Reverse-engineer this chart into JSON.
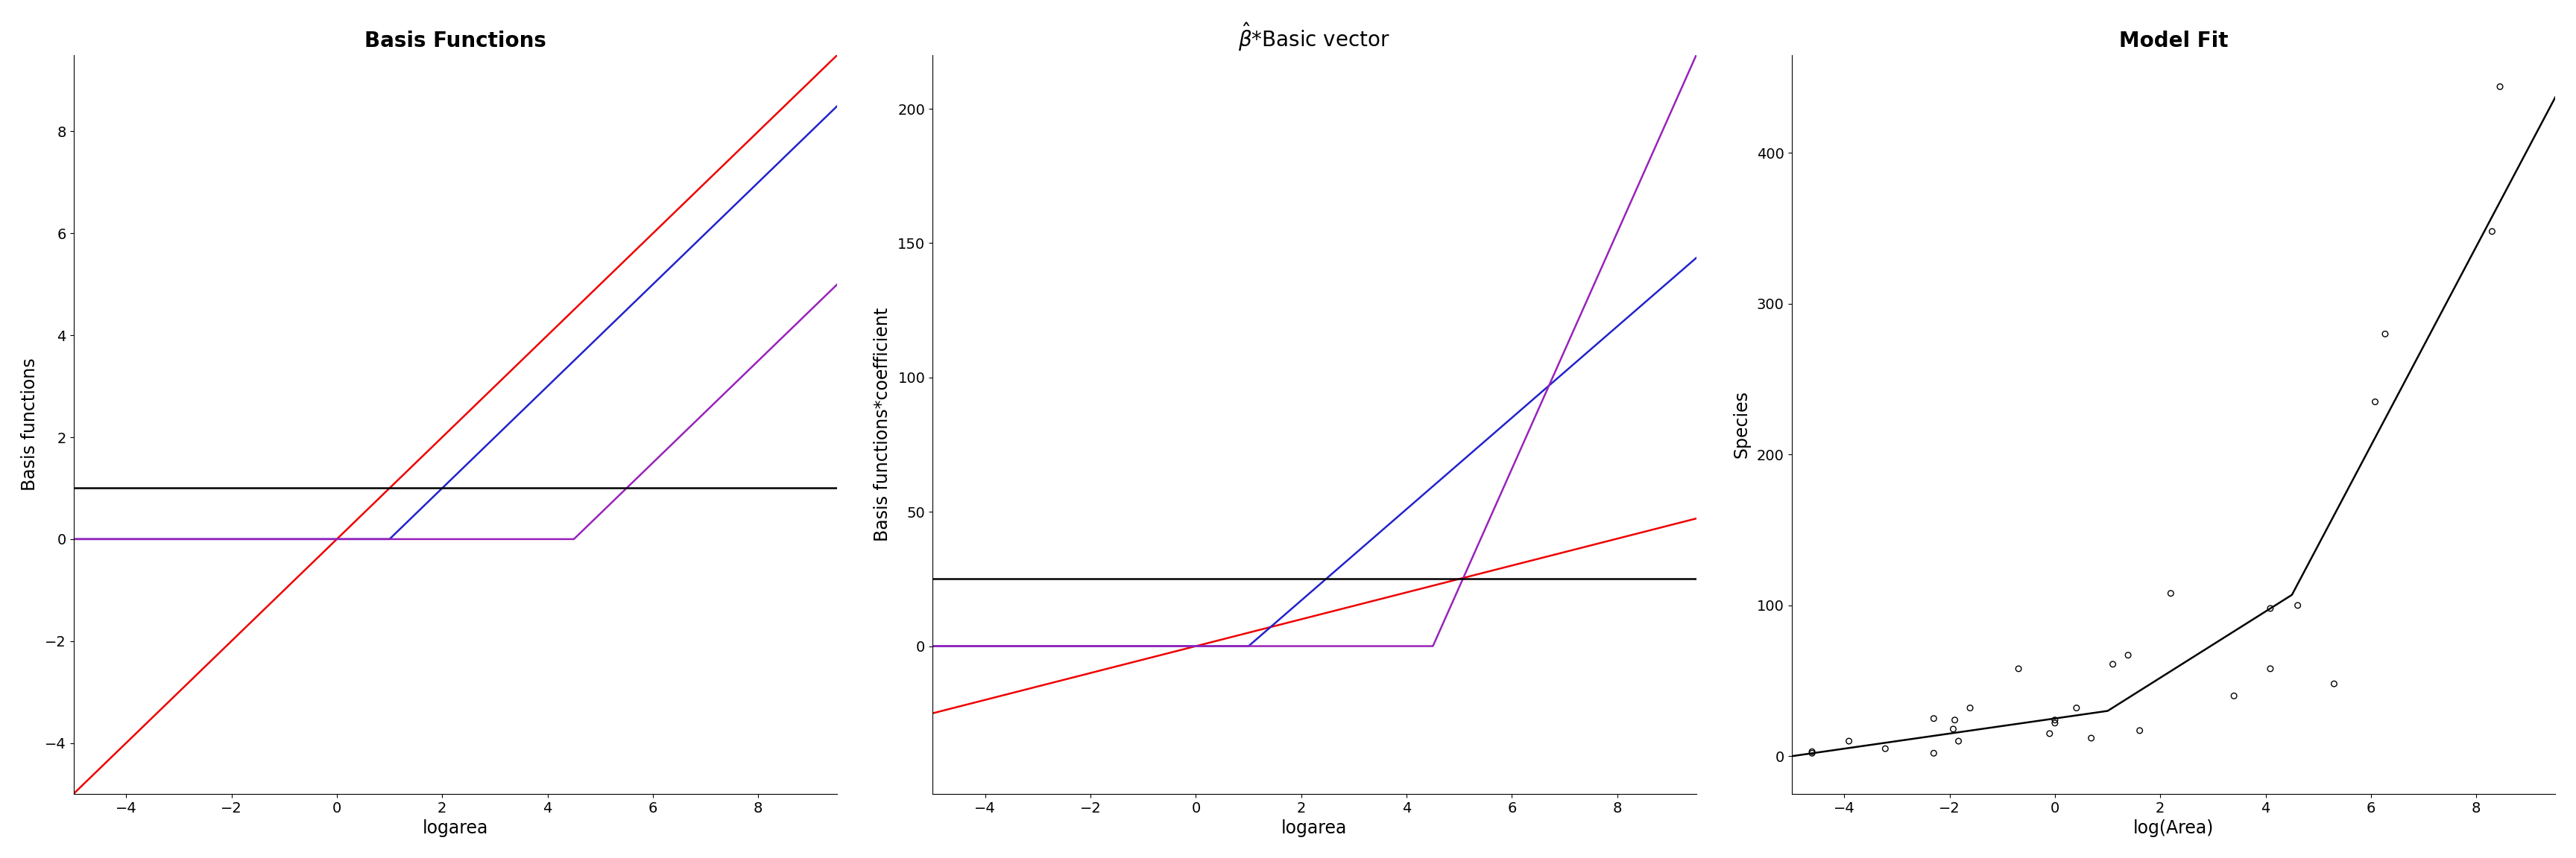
{
  "title1": "Basis Functions",
  "title2": "$\\hat{\\beta}$*Basic vector",
  "title3": "Model Fit",
  "xlabel1": "logarea",
  "xlabel2": "logarea",
  "xlabel3": "log(Area)",
  "ylabel1": "Basis functions",
  "ylabel2": "Basis functions*coefficient",
  "ylabel3": "Species",
  "xlim": [
    -5.0,
    9.5
  ],
  "ylim1": [
    -5.0,
    9.5
  ],
  "ylim2": [
    -55.0,
    220.0
  ],
  "ylim3": [
    -25.0,
    465.0
  ],
  "knot1": 1.0,
  "knot2": 4.5,
  "beta0": 25.0,
  "beta1": 5.0,
  "beta2": 17.0,
  "beta3": 44.0,
  "colors_red": "#EE0000",
  "colors_blue": "#2222CC",
  "colors_purple": "#9922BB",
  "colors_black": "#000000",
  "scatter_x": [
    -4.61,
    -4.61,
    -3.91,
    -3.22,
    -2.3,
    -2.3,
    -1.93,
    -1.9,
    -1.83,
    -1.61,
    -0.69,
    -0.1,
    0.0,
    0.0,
    0.41,
    0.69,
    1.1,
    1.39,
    1.61,
    2.2,
    3.4,
    4.09,
    4.09,
    4.61,
    5.3,
    6.08,
    6.27,
    8.3,
    8.45
  ],
  "scatter_y": [
    2,
    3,
    10,
    5,
    25,
    2,
    18,
    24,
    10,
    32,
    58,
    15,
    22,
    24,
    32,
    12,
    61,
    67,
    17,
    108,
    40,
    98,
    58,
    100,
    48,
    235,
    280,
    348,
    444
  ],
  "xticks": [
    -4,
    -2,
    0,
    2,
    4,
    6,
    8
  ],
  "yticks1": [
    -4,
    -2,
    0,
    2,
    4,
    6,
    8
  ],
  "yticks2": [
    0,
    50,
    100,
    150,
    200
  ],
  "yticks3": [
    0,
    100,
    200,
    300,
    400
  ],
  "lw": 1.8,
  "title_fontsize": 20,
  "label_fontsize": 17,
  "tick_fontsize": 14
}
